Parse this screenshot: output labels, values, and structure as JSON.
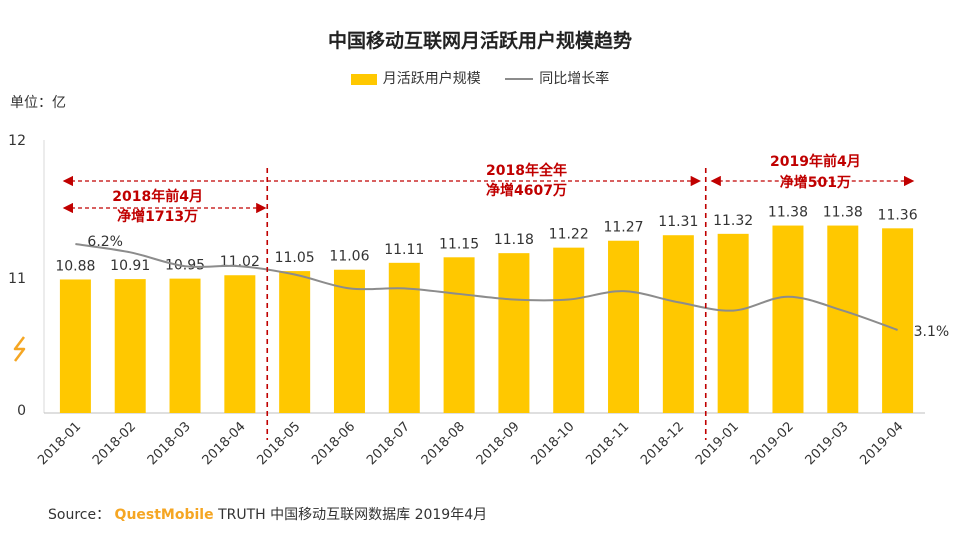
{
  "chart_data": {
    "type": "bar",
    "title": "中国移动互联网月活跃用户规模趋势",
    "unit_label": "单位：亿",
    "categories": [
      "2018-01",
      "2018-02",
      "2018-03",
      "2018-04",
      "2018-05",
      "2018-06",
      "2018-07",
      "2018-08",
      "2018-09",
      "2018-10",
      "2018-11",
      "2018-12",
      "2019-01",
      "2019-02",
      "2019-03",
      "2019-04"
    ],
    "series": [
      {
        "name": "月活跃用户规模",
        "type": "bar",
        "color": "#FFC800",
        "values": [
          10.88,
          10.91,
          10.95,
          11.02,
          11.05,
          11.06,
          11.11,
          11.15,
          11.18,
          11.22,
          11.27,
          11.31,
          11.32,
          11.38,
          11.38,
          11.36
        ]
      },
      {
        "name": "同比增长率",
        "type": "line",
        "color": "#8c8c8c",
        "values": [
          6.2,
          5.9,
          5.4,
          5.4,
          5.1,
          4.6,
          4.6,
          4.4,
          4.2,
          4.2,
          4.5,
          4.1,
          3.8,
          4.3,
          3.8,
          3.1
        ],
        "unit": "%"
      }
    ],
    "y_ticks": [
      "0",
      "11",
      "12"
    ],
    "ylim": [
      0,
      12
    ],
    "axis_break": true,
    "annotations": [
      {
        "line1": "2018年前4月",
        "line2": "净增1713万",
        "from": "2018-01",
        "to": "2018-04"
      },
      {
        "line1": "2018年全年",
        "line2": "净增4607万",
        "from": "2018-01",
        "to": "2018-12"
      },
      {
        "line1": "2019年前4月",
        "line2": "净增501万",
        "from": "2019-01",
        "to": "2019-04"
      }
    ],
    "line_labels": [
      {
        "index": 0,
        "text": "6.2%"
      },
      {
        "index": 15,
        "text": "3.1%"
      }
    ],
    "legend": "top-center",
    "colors": {
      "annotation": "#C00000",
      "bar": "#FFC800",
      "line": "#8c8c8c"
    }
  },
  "source": {
    "prefix": "Source：",
    "brand": "QuestMobile",
    "rest": "TRUTH 中国移动互联网数据库 2019年4月"
  }
}
